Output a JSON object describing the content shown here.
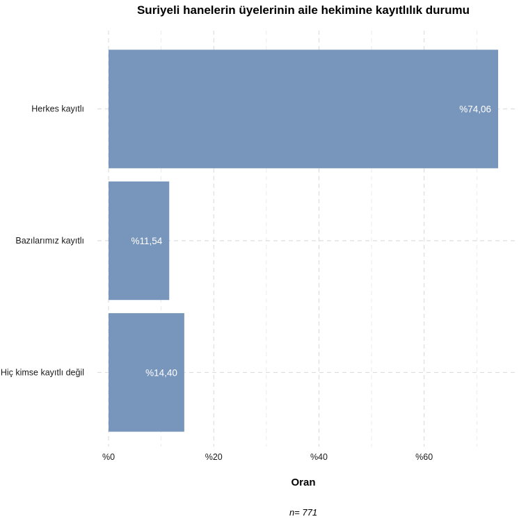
{
  "chart_data": {
    "type": "bar",
    "orientation": "horizontal",
    "title": "Suriyeli hanelerin üyelerinin aile hekimine kayıtlılık durumu",
    "xlabel": "Oran",
    "ylabel": "",
    "caption": "n=  771",
    "categories": [
      "Herkes kayıtlı",
      "Bazılarımız kayıtlı",
      "Hiç kimse kayıtlı değil"
    ],
    "values": [
      74.06,
      11.54,
      14.4
    ],
    "data_labels": [
      "%74,06",
      "%11,54",
      "%14,40"
    ],
    "xlim": [
      0,
      74.06
    ],
    "x_ticks": [
      0,
      20,
      40,
      60
    ],
    "x_tick_labels": [
      "%0",
      "%20",
      "%40",
      "%60"
    ],
    "bar_color": "#7896BB",
    "grid": true,
    "legend": "none"
  }
}
